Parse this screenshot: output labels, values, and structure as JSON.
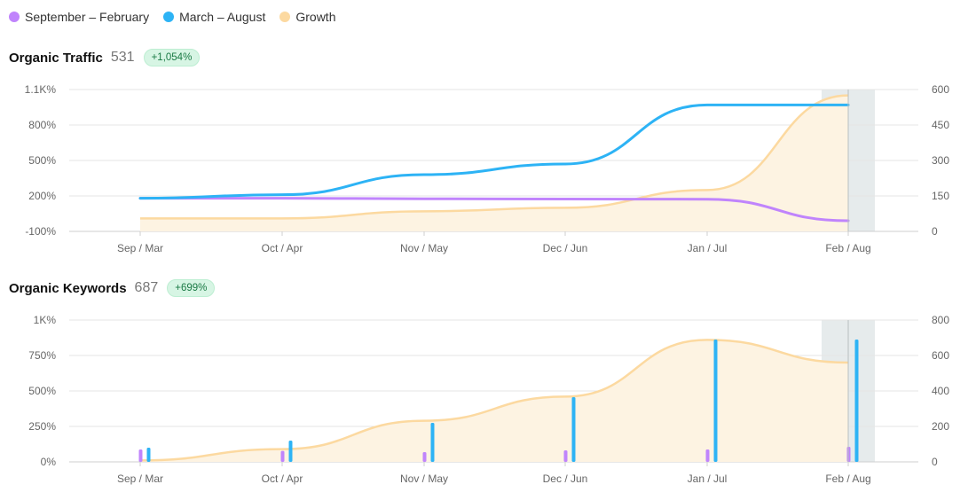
{
  "legend": [
    {
      "label": "September – February",
      "color": "#c084fc"
    },
    {
      "label": "March – August",
      "color": "#2db3f5"
    },
    {
      "label": "Growth",
      "color": "#fcd9a0"
    }
  ],
  "colors": {
    "purple": "#c084fc",
    "blue": "#2db3f5",
    "growth_line": "#fcd9a0",
    "growth_fill": "#fdf3e2",
    "highlight_band": "#e6ebec",
    "grid": "#e5e5e5"
  },
  "chart_data": [
    {
      "type": "line",
      "title": "Organic Traffic",
      "value": "531",
      "growth_badge": "+1,054%",
      "categories": [
        "Sep / Mar",
        "Oct / Apr",
        "Nov / May",
        "Dec / Jun",
        "Jan / Jul",
        "Feb / Aug"
      ],
      "left_axis": {
        "ticks": [
          "1.1K%",
          "800%",
          "500%",
          "200%",
          "-100%"
        ],
        "range": [
          -100,
          1100
        ]
      },
      "right_axis": {
        "ticks": [
          "600",
          "450",
          "300",
          "150",
          "0"
        ],
        "range": [
          0,
          600
        ]
      },
      "series": [
        {
          "name": "September – February",
          "axis": "right",
          "values": [
            140,
            140,
            138,
            137,
            136,
            45
          ]
        },
        {
          "name": "March – August",
          "axis": "right",
          "values": [
            140,
            155,
            240,
            285,
            535,
            535
          ]
        },
        {
          "name": "Growth",
          "axis": "left",
          "area": true,
          "values": [
            10,
            10,
            70,
            100,
            250,
            1050
          ]
        }
      ],
      "highlight_category": "Feb / Aug"
    },
    {
      "type": "bar",
      "title": "Organic Keywords",
      "value": "687",
      "growth_badge": "+699%",
      "categories": [
        "Sep / Mar",
        "Oct / Apr",
        "Nov / May",
        "Dec / Jun",
        "Jan / Jul",
        "Feb / Aug"
      ],
      "left_axis": {
        "ticks": [
          "1K%",
          "750%",
          "500%",
          "250%",
          "0%"
        ],
        "range": [
          0,
          1000
        ]
      },
      "right_axis": {
        "ticks": [
          "800",
          "600",
          "400",
          "200",
          "0"
        ],
        "range": [
          0,
          800
        ]
      },
      "series": [
        {
          "name": "September – February",
          "axis": "right",
          "values": [
            70,
            62,
            55,
            65,
            70,
            85
          ]
        },
        {
          "name": "March – August",
          "axis": "right",
          "values": [
            80,
            120,
            220,
            365,
            690,
            690
          ]
        },
        {
          "name": "Growth",
          "axis": "left",
          "area": true,
          "values": [
            10,
            90,
            290,
            460,
            860,
            700
          ]
        }
      ],
      "highlight_category": "Feb / Aug"
    }
  ]
}
